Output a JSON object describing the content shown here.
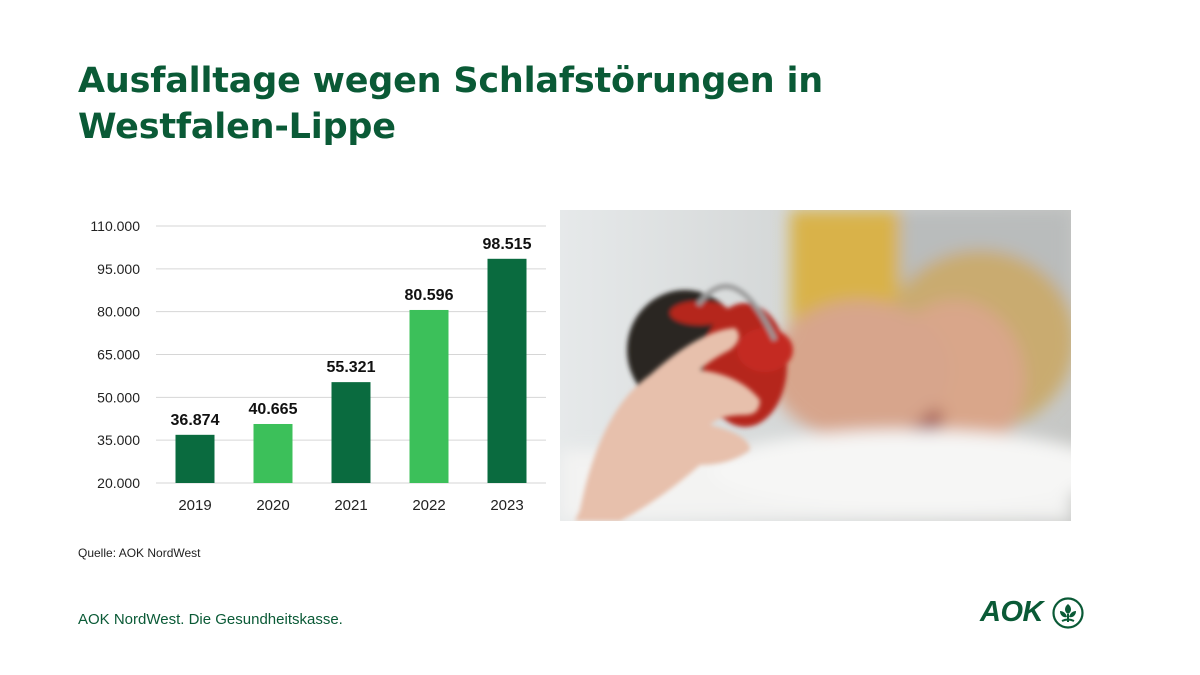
{
  "title": "Ausfalltage wegen Schlafstörungen in Westfalen-Lippe",
  "source": "Quelle: AOK NordWest",
  "footer": "AOK NordWest. Die Gesundheitskasse.",
  "logo": {
    "text": "AOK",
    "icon": "aok-tree-icon"
  },
  "photo": {
    "icon": "woman-alarm-clock-photo"
  },
  "colors": {
    "brand": "#0a5a36",
    "bar_dark": "#0a6b3f",
    "bar_light": "#3cc05a"
  },
  "chart_data": {
    "type": "bar",
    "categories": [
      "2019",
      "2020",
      "2021",
      "2022",
      "2023"
    ],
    "values": [
      36874,
      40665,
      55321,
      80596,
      98515
    ],
    "value_labels": [
      "36.874",
      "40.665",
      "55.321",
      "80.596",
      "98.515"
    ],
    "bar_colors": [
      "#0a6b3f",
      "#3cc05a",
      "#0a6b3f",
      "#3cc05a",
      "#0a6b3f"
    ],
    "yticks": [
      20000,
      35000,
      50000,
      65000,
      80000,
      95000,
      110000
    ],
    "ytick_labels": [
      "20.000",
      "35.000",
      "50.000",
      "65.000",
      "80.000",
      "95.000",
      "110.000"
    ],
    "ylim": [
      20000,
      110000
    ],
    "grid": true,
    "title": "",
    "xlabel": "",
    "ylabel": ""
  }
}
